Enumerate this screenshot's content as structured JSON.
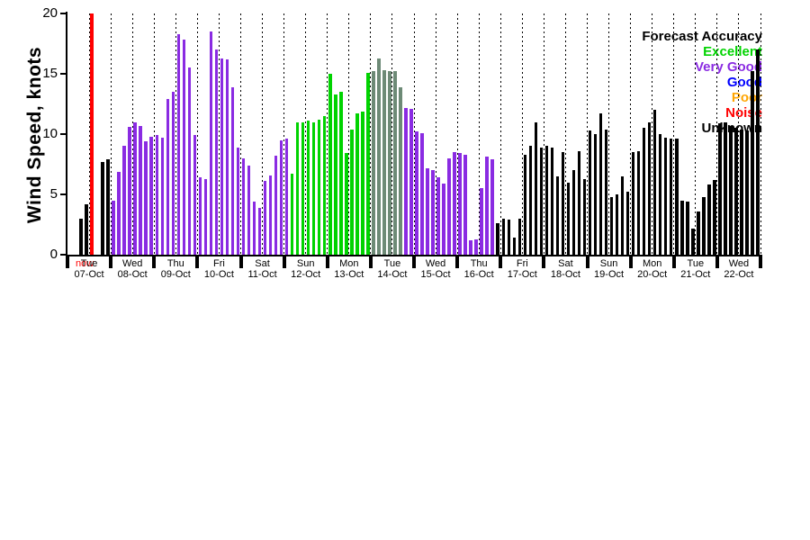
{
  "chart_data": {
    "type": "bar",
    "title": "",
    "ylabel": "Wind Speed, knots",
    "ylim": [
      0,
      20
    ],
    "yticks": [
      0,
      5,
      10,
      15,
      20
    ],
    "grid": "vertical dotted lines every 12 hours",
    "slots_per_day": 8,
    "now_marker": {
      "label": "now",
      "day_index": 0,
      "slot": 4.5,
      "color": "#ff0000"
    },
    "palette": {
      "u": "#000000",
      "vg": "#8a2be2",
      "ex": "#00d300",
      "gr": "#6d8a76"
    },
    "legend": {
      "title": "Forecast Accuracy",
      "position": "top-right",
      "items": [
        {
          "label": "Excellent",
          "color": "#00d300"
        },
        {
          "label": "Very Good",
          "color": "#8a2be2"
        },
        {
          "label": "Good",
          "color": "#0000ff"
        },
        {
          "label": "Poor",
          "color": "#ffa500"
        },
        {
          "label": "Noise",
          "color": "#ff0000"
        },
        {
          "label": "Unknown",
          "color": "#000000"
        }
      ]
    },
    "days": [
      {
        "dow": "Tue",
        "date": "07-Oct",
        "bars": [
          null,
          null,
          [
            3.0,
            "u"
          ],
          [
            4.2,
            "u"
          ],
          null,
          null,
          [
            7.7,
            "u"
          ],
          [
            7.9,
            "u"
          ]
        ]
      },
      {
        "dow": "Wed",
        "date": "08-Oct",
        "bars": [
          [
            4.5,
            "vg"
          ],
          [
            6.9,
            "vg"
          ],
          [
            9.0,
            "vg"
          ],
          [
            10.6,
            "vg"
          ],
          [
            11.0,
            "vg"
          ],
          [
            10.7,
            "vg"
          ],
          [
            9.4,
            "vg"
          ],
          [
            9.8,
            "vg"
          ]
        ]
      },
      {
        "dow": "Thu",
        "date": "09-Oct",
        "bars": [
          [
            9.9,
            "vg"
          ],
          [
            9.7,
            "vg"
          ],
          [
            12.9,
            "vg"
          ],
          [
            13.5,
            "vg"
          ],
          [
            18.3,
            "vg"
          ],
          [
            17.8,
            "vg"
          ],
          [
            15.5,
            "vg"
          ],
          [
            9.9,
            "vg"
          ]
        ]
      },
      {
        "dow": "Fri",
        "date": "10-Oct",
        "bars": [
          [
            6.4,
            "vg"
          ],
          [
            6.3,
            "vg"
          ],
          [
            18.5,
            "vg"
          ],
          [
            17.0,
            "vg"
          ],
          [
            16.3,
            "vg"
          ],
          [
            16.2,
            "vg"
          ],
          [
            13.9,
            "vg"
          ],
          [
            8.9,
            "vg"
          ]
        ]
      },
      {
        "dow": "Sat",
        "date": "11-Oct",
        "bars": [
          [
            8.0,
            "vg"
          ],
          [
            7.4,
            "vg"
          ],
          [
            4.4,
            "vg"
          ],
          [
            3.9,
            "vg"
          ],
          [
            6.1,
            "vg"
          ],
          [
            6.6,
            "vg"
          ],
          [
            8.2,
            "vg"
          ],
          [
            9.5,
            "vg"
          ]
        ]
      },
      {
        "dow": "Sun",
        "date": "12-Oct",
        "bars": [
          [
            9.6,
            "vg"
          ],
          [
            6.7,
            "ex"
          ],
          [
            11.0,
            "ex"
          ],
          [
            11.0,
            "ex"
          ],
          [
            11.1,
            "ex"
          ],
          [
            11.0,
            "ex"
          ],
          [
            11.2,
            "ex"
          ],
          [
            11.5,
            "ex"
          ]
        ]
      },
      {
        "dow": "Mon",
        "date": "13-Oct",
        "bars": [
          [
            15.0,
            "ex"
          ],
          [
            13.3,
            "ex"
          ],
          [
            13.5,
            "ex"
          ],
          [
            8.4,
            "ex"
          ],
          [
            10.4,
            "ex"
          ],
          [
            11.7,
            "ex"
          ],
          [
            11.9,
            "ex"
          ],
          [
            15.1,
            "ex"
          ]
        ]
      },
      {
        "dow": "Tue",
        "date": "14-Oct",
        "bars": [
          [
            15.2,
            "gr"
          ],
          [
            16.3,
            "gr"
          ],
          [
            15.3,
            "gr"
          ],
          [
            15.2,
            "gr"
          ],
          [
            15.2,
            "gr"
          ],
          [
            13.9,
            "gr"
          ],
          [
            12.2,
            "vg"
          ],
          [
            12.1,
            "vg"
          ]
        ]
      },
      {
        "dow": "Wed",
        "date": "15-Oct",
        "bars": [
          [
            10.2,
            "vg"
          ],
          [
            10.1,
            "vg"
          ],
          [
            7.2,
            "vg"
          ],
          [
            7.0,
            "vg"
          ],
          [
            6.4,
            "vg"
          ],
          [
            5.9,
            "vg"
          ],
          [
            8.0,
            "vg"
          ],
          [
            8.5,
            "vg"
          ]
        ]
      },
      {
        "dow": "Thu",
        "date": "16-Oct",
        "bars": [
          [
            8.4,
            "vg"
          ],
          [
            8.3,
            "vg"
          ],
          [
            1.2,
            "vg"
          ],
          [
            1.3,
            "vg"
          ],
          [
            5.5,
            "vg"
          ],
          [
            8.1,
            "vg"
          ],
          [
            7.9,
            "vg"
          ],
          [
            2.6,
            "u"
          ]
        ]
      },
      {
        "dow": "Fri",
        "date": "17-Oct",
        "bars": [
          [
            3.0,
            "u"
          ],
          [
            2.9,
            "u"
          ],
          [
            1.4,
            "u"
          ],
          [
            3.0,
            "u"
          ],
          [
            8.3,
            "u"
          ],
          [
            9.0,
            "u"
          ],
          [
            11.0,
            "u"
          ],
          [
            8.9,
            "u"
          ]
        ]
      },
      {
        "dow": "Sat",
        "date": "18-Oct",
        "bars": [
          [
            9.0,
            "u"
          ],
          [
            8.9,
            "u"
          ],
          [
            6.5,
            "u"
          ],
          [
            8.5,
            "u"
          ],
          [
            6.0,
            "u"
          ],
          [
            7.0,
            "u"
          ],
          [
            8.6,
            "u"
          ],
          [
            6.3,
            "u"
          ]
        ]
      },
      {
        "dow": "Sun",
        "date": "19-Oct",
        "bars": [
          [
            10.3,
            "u"
          ],
          [
            10.0,
            "u"
          ],
          [
            11.7,
            "u"
          ],
          [
            10.4,
            "u"
          ],
          [
            4.8,
            "u"
          ],
          [
            5.0,
            "u"
          ],
          [
            6.5,
            "u"
          ],
          [
            5.2,
            "u"
          ]
        ]
      },
      {
        "dow": "Mon",
        "date": "20-Oct",
        "bars": [
          [
            8.5,
            "u"
          ],
          [
            8.6,
            "u"
          ],
          [
            10.5,
            "u"
          ],
          [
            11.0,
            "u"
          ],
          [
            12.0,
            "u"
          ],
          [
            10.0,
            "u"
          ],
          [
            9.7,
            "u"
          ],
          [
            9.6,
            "u"
          ]
        ]
      },
      {
        "dow": "Tue",
        "date": "21-Oct",
        "bars": [
          [
            9.6,
            "u"
          ],
          [
            4.5,
            "u"
          ],
          [
            4.4,
            "u"
          ],
          [
            2.2,
            "u"
          ],
          [
            3.6,
            "u"
          ],
          [
            4.8,
            "u"
          ],
          [
            5.8,
            "u"
          ],
          [
            6.2,
            "u"
          ]
        ]
      },
      {
        "dow": "Wed",
        "date": "22-Oct",
        "bars": [
          [
            10.9,
            "u"
          ],
          [
            11.0,
            "u"
          ],
          [
            10.7,
            "u"
          ],
          [
            10.5,
            "u"
          ],
          [
            10.4,
            "u"
          ],
          [
            10.3,
            "u"
          ],
          [
            15.2,
            "u"
          ],
          [
            17.0,
            "u"
          ]
        ]
      }
    ]
  }
}
